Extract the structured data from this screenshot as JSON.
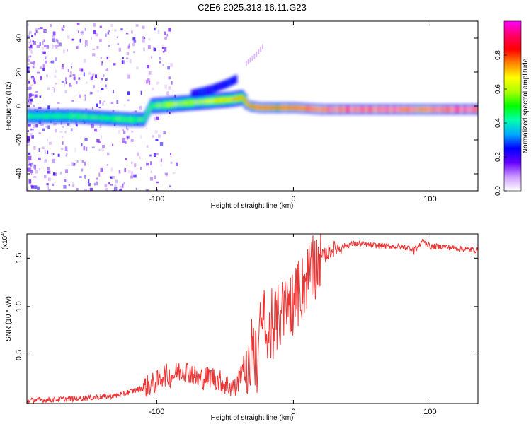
{
  "figure": {
    "title": "C2E6.2025.313.16.11.G23"
  },
  "chart_data": [
    {
      "type": "heatmap",
      "name": "spectrogram",
      "xlabel": "Height of straight line (km)",
      "ylabel": "Frequency (Hz)",
      "xlim": [
        -195,
        135
      ],
      "ylim": [
        -50,
        50
      ],
      "xticks": [
        -100,
        0,
        100
      ],
      "yticks": [
        -40,
        -20,
        0,
        20,
        40
      ],
      "colorbar": {
        "label": "Normalized spectral amplitude",
        "range": [
          0,
          1
        ],
        "ticks": [
          0.0,
          0.2,
          0.4,
          0.6,
          0.8
        ],
        "tick_labels": [
          "0.0",
          "0.2",
          "0.4",
          "0.6",
          "0.8"
        ],
        "stops": [
          "#ffffff",
          "#cc99ff",
          "#6600ff",
          "#0000ff",
          "#00aaff",
          "#00ffaa",
          "#00ff00",
          "#aaff00",
          "#ffff00",
          "#ff8800",
          "#ff0000",
          "#ff0066",
          "#ff00ff"
        ]
      },
      "ridge": {
        "x": [
          -195,
          -180,
          -160,
          -140,
          -120,
          -110,
          -105,
          -90,
          -75,
          -60,
          -45,
          -38,
          -33,
          -25,
          -10,
          0,
          20,
          40,
          60,
          80,
          100,
          120,
          135
        ],
        "freq_hz": [
          -6,
          -6,
          -6,
          -7,
          -8,
          -8,
          0,
          1,
          2,
          3,
          4,
          5,
          0,
          -1,
          -1,
          -1,
          -2,
          -2,
          -2,
          -2,
          -2,
          -2,
          -2
        ],
        "amplitude": [
          0.45,
          0.45,
          0.5,
          0.5,
          0.5,
          0.5,
          0.55,
          0.6,
          0.6,
          0.65,
          0.7,
          0.75,
          0.8,
          0.85,
          0.85,
          0.9,
          0.95,
          1.0,
          1.0,
          0.95,
          0.95,
          1.0,
          1.0
        ]
      },
      "upper_branch": {
        "x": [
          -75,
          -60,
          -50,
          -42
        ],
        "freq_hz": [
          7,
          10,
          13,
          16
        ]
      },
      "faint_branch": {
        "x": [
          -35,
          -28,
          -22
        ],
        "freq_hz": [
          25,
          30,
          36
        ]
      }
    },
    {
      "type": "line",
      "name": "snr",
      "xlabel": "Height of straight line (km)",
      "ylabel": "SNR (10 * v/v)",
      "scale_label": "(x10",
      "scale_exponent": "4",
      "xlim": [
        -195,
        135
      ],
      "ylim": [
        0,
        1.75
      ],
      "xticks": [
        -100,
        0,
        100
      ],
      "yticks": [
        0.5,
        1.0,
        1.5
      ],
      "ytick_labels": [
        "0.5",
        "1.0",
        "1.5"
      ],
      "color": "#ee3333",
      "series": [
        {
          "name": "SNR",
          "x": [
            -195,
            -160,
            -130,
            -112,
            -100,
            -95,
            -90,
            -85,
            -80,
            -75,
            -70,
            -60,
            -50,
            -42,
            -37,
            -33,
            -30,
            -27,
            -25,
            -22,
            -20,
            -15,
            -10,
            -5,
            0,
            5,
            10,
            20,
            30,
            45,
            60,
            75,
            90,
            95,
            100,
            110,
            120,
            135
          ],
          "y": [
            0.03,
            0.05,
            0.08,
            0.15,
            0.22,
            0.3,
            0.28,
            0.32,
            0.35,
            0.32,
            0.25,
            0.28,
            0.2,
            0.15,
            0.4,
            0.2,
            0.7,
            0.35,
            0.65,
            0.95,
            0.6,
            0.8,
            0.9,
            1.0,
            1.05,
            1.15,
            1.3,
            1.5,
            1.6,
            1.65,
            1.63,
            1.62,
            1.6,
            1.68,
            1.62,
            1.62,
            1.6,
            1.58
          ]
        }
      ]
    }
  ]
}
